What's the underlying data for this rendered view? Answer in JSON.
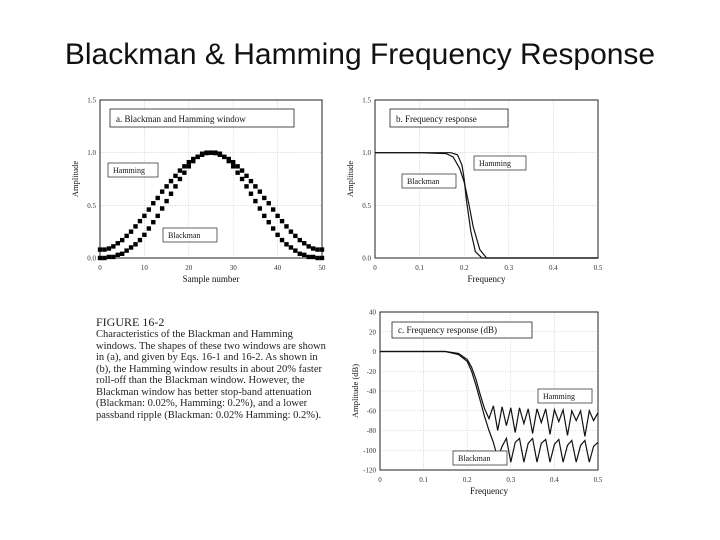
{
  "title": "Blackman & Hamming Frequency Response",
  "figure_caption": {
    "label": "FIGURE 16-2",
    "text": "Characteristics of the Blackman and Hamming windows. The shapes of these two windows are shown in (a), and given by Eqs. 16-1 and 16-2. As shown in (b), the Hamming window results in about 20% faster roll-off than the Blackman window. However, the Blackman window has better stop-band attenuation (Blackman: 0.02%, Hamming: 0.2%), and a lower passband ripple (Blackman: 0.02% Hamming: 0.2%)."
  },
  "chart_data": [
    {
      "type": "scatter",
      "title": "a. Blackman and Hamming window",
      "xlabel": "Sample number",
      "ylabel": "Amplitude",
      "xlim": [
        0,
        50
      ],
      "ylim": [
        0,
        1.5
      ],
      "x_ticks": [
        "0",
        "10",
        "20",
        "30",
        "40",
        "50"
      ],
      "y_ticks": [
        "0.0",
        "0.5",
        "1.0",
        "1.5"
      ],
      "grid": true,
      "series": [
        {
          "name": "Hamming",
          "x": [
            0,
            1,
            2,
            3,
            4,
            5,
            6,
            7,
            8,
            9,
            10,
            11,
            12,
            13,
            14,
            15,
            16,
            17,
            18,
            19,
            20,
            21,
            22,
            23,
            24,
            25,
            26,
            27,
            28,
            29,
            30,
            31,
            32,
            33,
            34,
            35,
            36,
            37,
            38,
            39,
            40,
            41,
            42,
            43,
            44,
            45,
            46,
            47,
            48,
            49,
            50
          ],
          "values": [
            0.08,
            0.08,
            0.09,
            0.11,
            0.14,
            0.17,
            0.21,
            0.25,
            0.3,
            0.35,
            0.4,
            0.46,
            0.52,
            0.57,
            0.63,
            0.68,
            0.73,
            0.78,
            0.83,
            0.87,
            0.91,
            0.94,
            0.96,
            0.98,
            0.996,
            1.0,
            0.996,
            0.98,
            0.96,
            0.94,
            0.91,
            0.87,
            0.83,
            0.78,
            0.73,
            0.68,
            0.63,
            0.57,
            0.52,
            0.46,
            0.4,
            0.35,
            0.3,
            0.25,
            0.21,
            0.17,
            0.14,
            0.11,
            0.09,
            0.08,
            0.08
          ]
        },
        {
          "name": "Blackman",
          "x": [
            0,
            1,
            2,
            3,
            4,
            5,
            6,
            7,
            8,
            9,
            10,
            11,
            12,
            13,
            14,
            15,
            16,
            17,
            18,
            19,
            20,
            21,
            22,
            23,
            24,
            25,
            26,
            27,
            28,
            29,
            30,
            31,
            32,
            33,
            34,
            35,
            36,
            37,
            38,
            39,
            40,
            41,
            42,
            43,
            44,
            45,
            46,
            47,
            48,
            49,
            50
          ],
          "values": [
            0.0,
            0.0,
            0.01,
            0.01,
            0.03,
            0.04,
            0.07,
            0.1,
            0.13,
            0.17,
            0.22,
            0.28,
            0.34,
            0.4,
            0.47,
            0.54,
            0.61,
            0.68,
            0.75,
            0.81,
            0.87,
            0.92,
            0.96,
            0.99,
            1.0,
            1.0,
            1.0,
            0.99,
            0.96,
            0.92,
            0.87,
            0.81,
            0.75,
            0.68,
            0.61,
            0.54,
            0.47,
            0.4,
            0.34,
            0.28,
            0.22,
            0.17,
            0.13,
            0.1,
            0.07,
            0.04,
            0.03,
            0.01,
            0.01,
            0.0,
            0.0
          ]
        }
      ]
    },
    {
      "type": "line",
      "title": "b. Frequency response",
      "xlabel": "Frequency",
      "ylabel": "Amplitude",
      "xlim": [
        0,
        0.5
      ],
      "ylim": [
        0,
        1.5
      ],
      "x_ticks": [
        "0",
        "0.1",
        "0.2",
        "0.3",
        "0.4",
        "0.5"
      ],
      "y_ticks": [
        "0.0",
        "0.5",
        "1.0",
        "1.5"
      ],
      "grid": true,
      "series": [
        {
          "name": "Hamming",
          "x": [
            0,
            0.1,
            0.17,
            0.185,
            0.195,
            0.2,
            0.205,
            0.215,
            0.225,
            0.24,
            0.5
          ],
          "values": [
            1.0,
            1.0,
            1.0,
            0.98,
            0.88,
            0.75,
            0.55,
            0.25,
            0.06,
            0.0,
            0.0
          ]
        },
        {
          "name": "Blackman",
          "x": [
            0,
            0.1,
            0.16,
            0.175,
            0.19,
            0.2,
            0.21,
            0.22,
            0.235,
            0.25,
            0.5
          ],
          "values": [
            1.0,
            1.0,
            0.99,
            0.96,
            0.85,
            0.72,
            0.52,
            0.3,
            0.08,
            0.0,
            0.0
          ]
        }
      ]
    },
    {
      "type": "line",
      "title": "c. Frequency response (dB)",
      "xlabel": "Frequency",
      "ylabel": "Amplitude (dB)",
      "xlim": [
        0,
        0.5
      ],
      "ylim": [
        -120,
        40
      ],
      "x_ticks": [
        "0",
        "0.1",
        "0.2",
        "0.3",
        "0.4",
        "0.5"
      ],
      "y_ticks": [
        "40",
        "20",
        "0",
        "-20",
        "-40",
        "-60",
        "-80",
        "-100",
        "-120"
      ],
      "grid": true,
      "series": [
        {
          "name": "Hamming",
          "x": [
            0,
            0.15,
            0.18,
            0.2,
            0.21,
            0.22,
            0.23,
            0.24,
            0.25,
            0.26,
            0.27,
            0.28,
            0.29,
            0.3,
            0.31,
            0.32,
            0.33,
            0.34,
            0.35,
            0.36,
            0.37,
            0.38,
            0.39,
            0.4,
            0.41,
            0.42,
            0.43,
            0.44,
            0.45,
            0.46,
            0.47,
            0.48,
            0.49,
            0.5
          ],
          "values": [
            0,
            0,
            -2,
            -8,
            -16,
            -28,
            -44,
            -58,
            -68,
            -55,
            -80,
            -56,
            -75,
            -57,
            -82,
            -57,
            -73,
            -58,
            -83,
            -58,
            -72,
            -58,
            -84,
            -59,
            -71,
            -59,
            -85,
            -60,
            -70,
            -60,
            -86,
            -60,
            -70,
            -62
          ]
        },
        {
          "name": "Blackman",
          "x": [
            0,
            0.15,
            0.18,
            0.2,
            0.21,
            0.22,
            0.23,
            0.24,
            0.25,
            0.26,
            0.27,
            0.28,
            0.29,
            0.3,
            0.31,
            0.32,
            0.33,
            0.34,
            0.35,
            0.36,
            0.37,
            0.38,
            0.39,
            0.4,
            0.41,
            0.42,
            0.43,
            0.44,
            0.45,
            0.46,
            0.47,
            0.48,
            0.49,
            0.5
          ],
          "values": [
            0,
            0,
            -3,
            -10,
            -20,
            -34,
            -50,
            -66,
            -80,
            -92,
            -108,
            -96,
            -88,
            -112,
            -92,
            -88,
            -112,
            -93,
            -88,
            -112,
            -93,
            -89,
            -112,
            -94,
            -89,
            -112,
            -95,
            -90,
            -112,
            -95,
            -90,
            -112,
            -96,
            -92
          ]
        }
      ]
    }
  ]
}
